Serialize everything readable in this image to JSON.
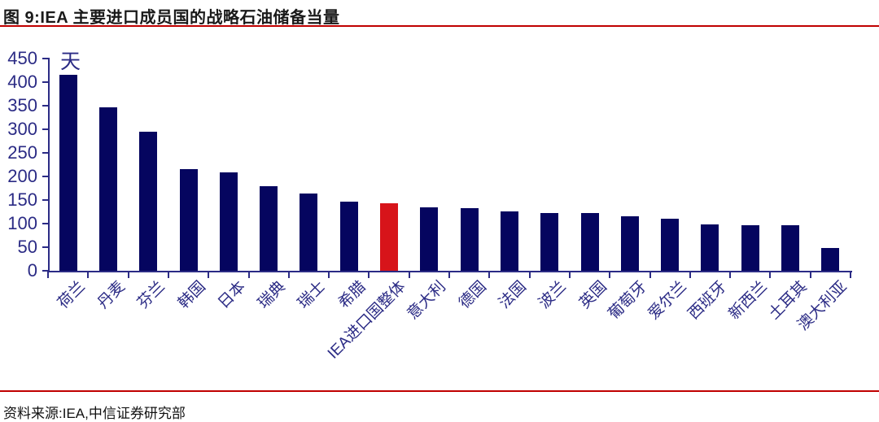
{
  "figure": {
    "title": "图 9:IEA 主要进口成员国的战略石油储备当量",
    "source": "资料来源:IEA,中信证券研究部"
  },
  "colors": {
    "rule_red": "#c00000",
    "bar_navy": "#05055f",
    "bar_highlight_red": "#d7141a",
    "axis_navy": "#2b2b85",
    "tick_label_navy": "#2b2b85",
    "title_black": "#1a1a1a"
  },
  "chart_data": {
    "type": "bar",
    "title": "",
    "xlabel": "",
    "ylabel": "天",
    "unit_label": "天",
    "categories": [
      "荷兰",
      "丹麦",
      "芬兰",
      "韩国",
      "日本",
      "瑞典",
      "瑞士",
      "希腊",
      "IEA进口国整体",
      "意大利",
      "德国",
      "法国",
      "波兰",
      "英国",
      "葡萄牙",
      "爱尔兰",
      "西班牙",
      "新西兰",
      "土耳其",
      "澳大利亚"
    ],
    "values": [
      415,
      347,
      294,
      215,
      208,
      179,
      163,
      146,
      143,
      134,
      132,
      125,
      123,
      122,
      115,
      110,
      98,
      96,
      96,
      48
    ],
    "highlight_category": "IEA进口国整体",
    "highlight_index": 8,
    "ylim": [
      0,
      450
    ],
    "yticks": [
      0,
      50,
      100,
      150,
      200,
      250,
      300,
      350,
      400,
      450
    ],
    "grid": false,
    "legend": false
  }
}
